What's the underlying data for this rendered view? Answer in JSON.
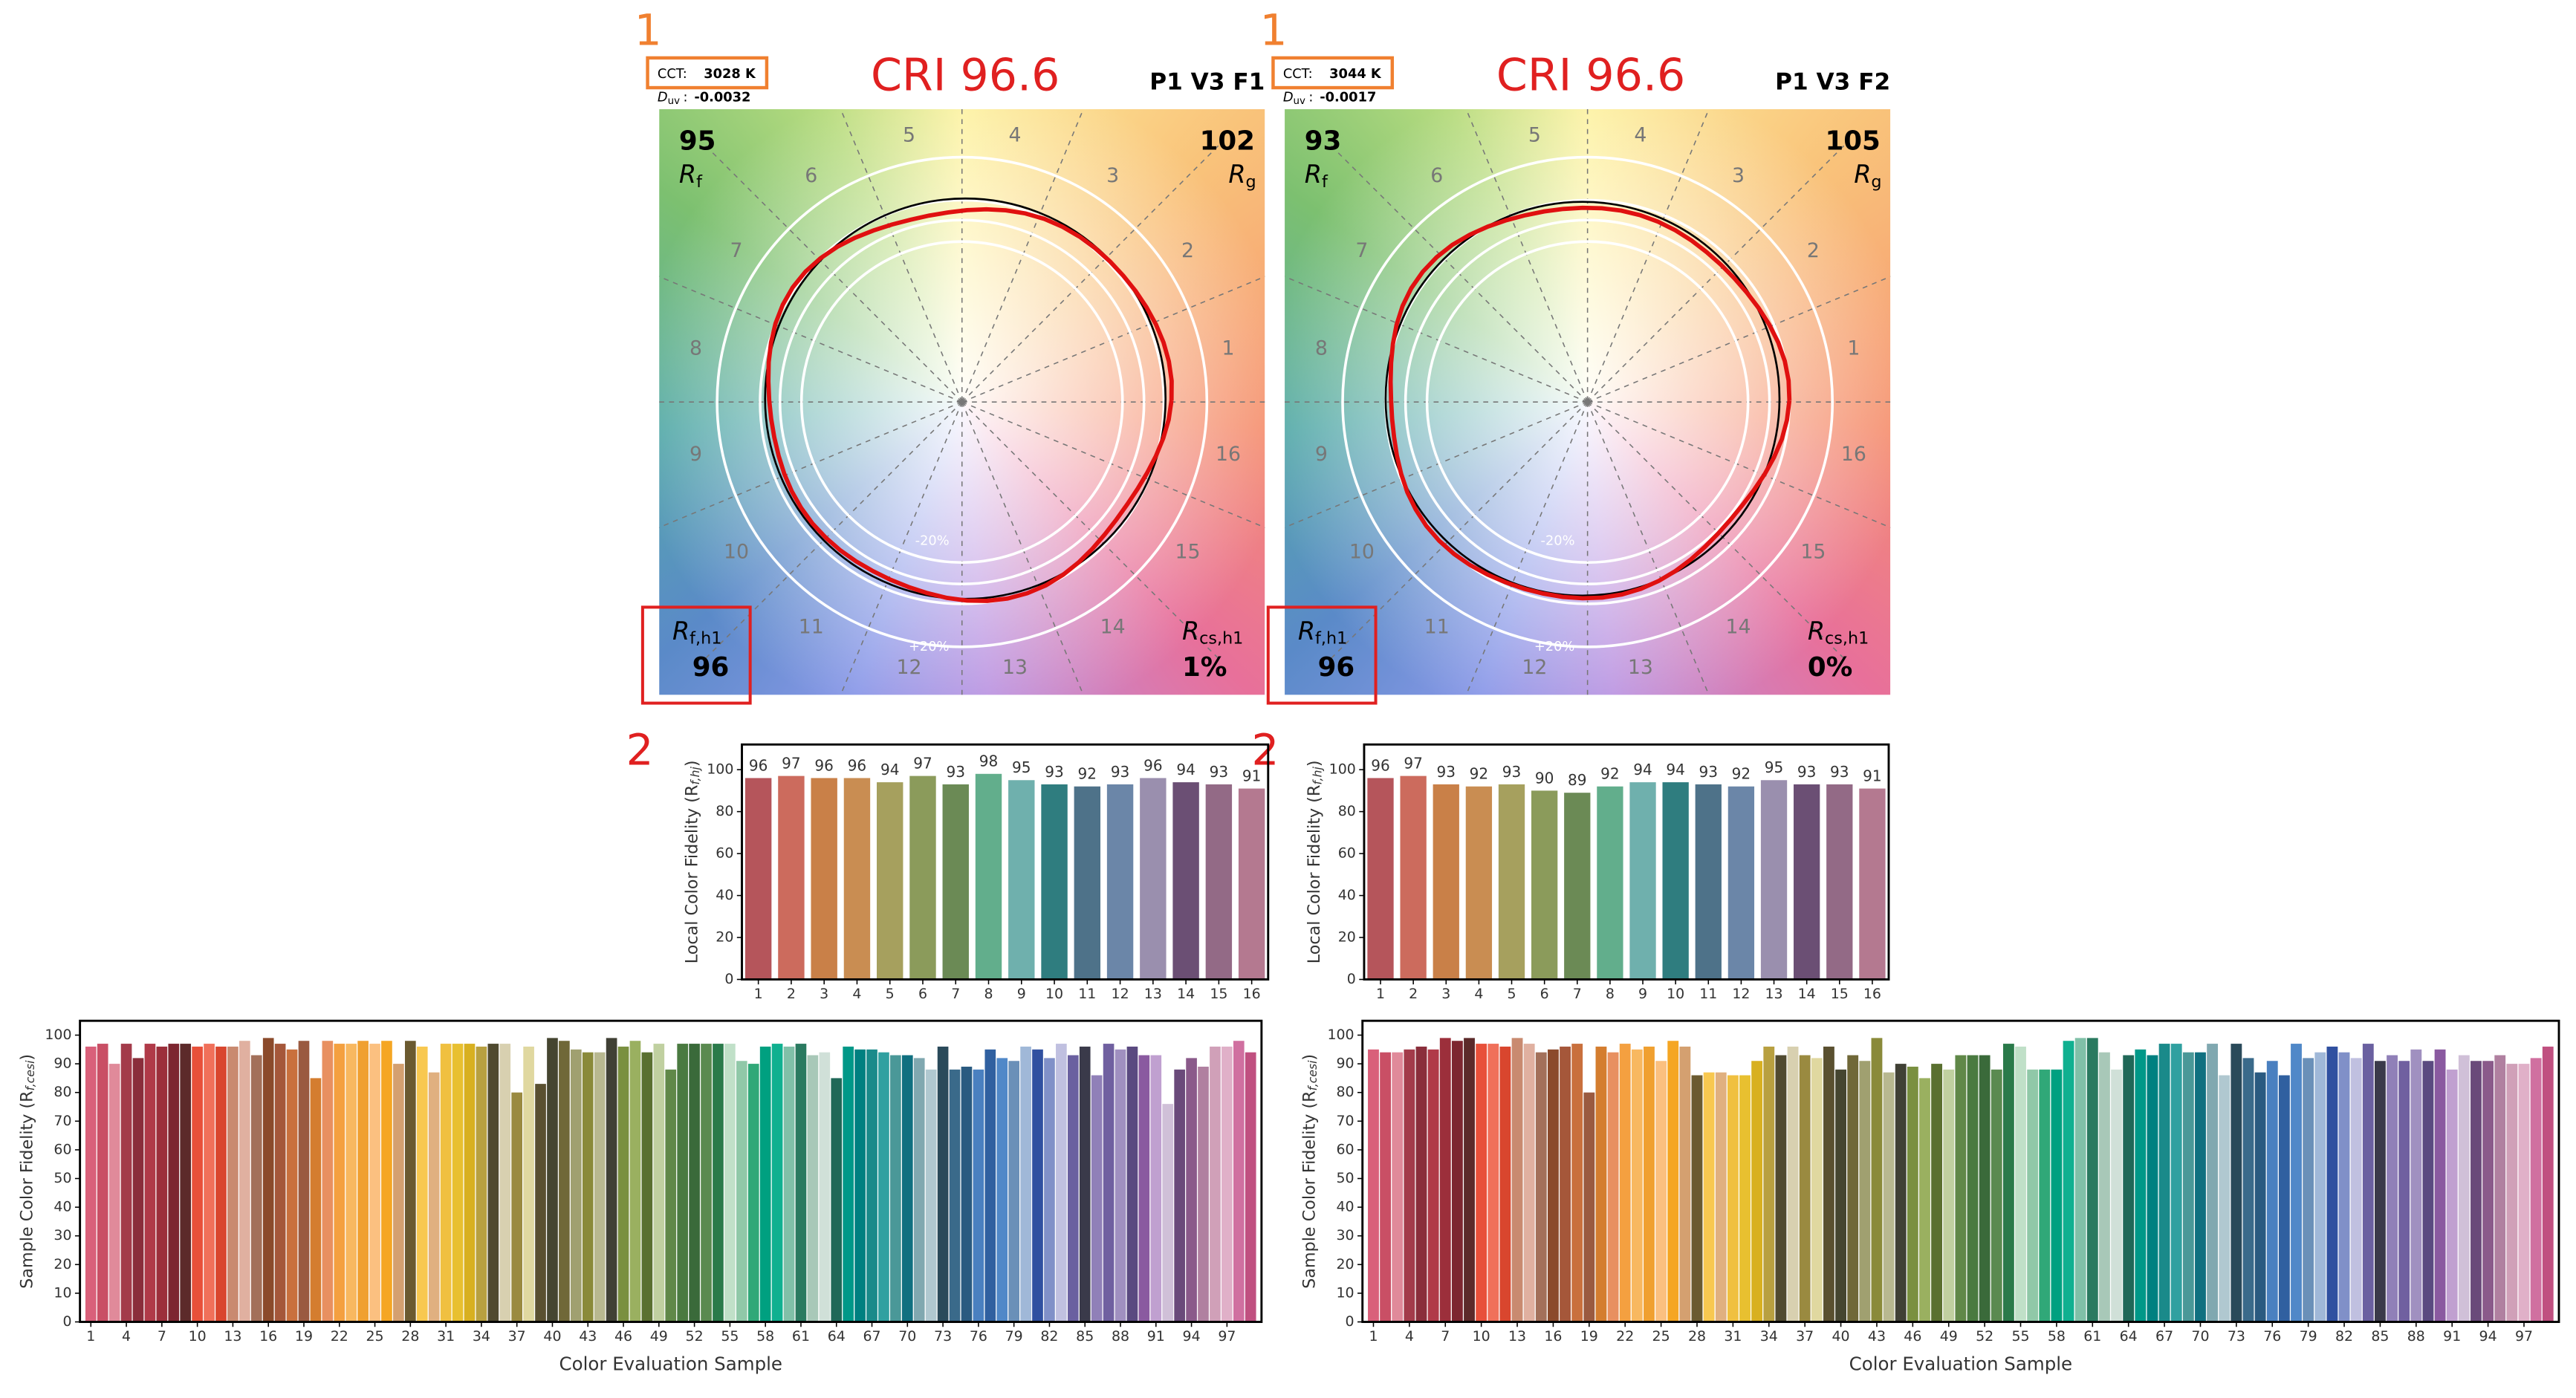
{
  "panels": [
    {
      "annotation_1": "1",
      "cct_label": "CCT:",
      "cct": "3028 K",
      "duv_label": "D",
      "duv_sub": "uv",
      "duv_sep": ":",
      "duv": "-0.0032",
      "title": "CRI 96.6",
      "name": "P1 V3 F1",
      "r_symbol": "R",
      "rf": 95,
      "rf_sub": "f",
      "rg": 102,
      "rg_sub": "g",
      "rfh1_sub": "f,h1",
      "rfh1": 96,
      "rcs_sub": "cs,h1",
      "rcs": "1%",
      "ring_inner": "-20%",
      "ring_outer": "+20%",
      "annotation_2": "2",
      "hues": [
        "1",
        "2",
        "3",
        "4",
        "5",
        "6",
        "7",
        "8",
        "9",
        "10",
        "11",
        "12",
        "13",
        "14",
        "15",
        "16"
      ]
    },
    {
      "annotation_1": "1",
      "cct_label": "CCT:",
      "cct": "3044 K",
      "duv_label": "D",
      "duv_sub": "uv",
      "duv_sep": ":",
      "duv": "-0.0017",
      "title": "CRI 96.6",
      "name": "P1 V3 F2",
      "r_symbol": "R",
      "rf": 93,
      "rf_sub": "f",
      "rg": 105,
      "rg_sub": "g",
      "rfh1_sub": "f,h1",
      "rfh1": 96,
      "rcs_sub": "cs,h1",
      "rcs": "0%",
      "ring_inner": "-20%",
      "ring_outer": "+20%",
      "annotation_2": "2",
      "hues": [
        "1",
        "2",
        "3",
        "4",
        "5",
        "6",
        "7",
        "8",
        "9",
        "10",
        "11",
        "12",
        "13",
        "14",
        "15",
        "16"
      ]
    }
  ],
  "chart_data": [
    {
      "type": "bar",
      "y_label": "Local Color Fidelity (R",
      "y_label_sub": "f,hj",
      "y_label_end": ")",
      "categories": [
        "1",
        "2",
        "3",
        "4",
        "5",
        "6",
        "7",
        "8",
        "9",
        "10",
        "11",
        "12",
        "13",
        "14",
        "15",
        "16"
      ],
      "values": [
        96,
        97,
        96,
        96,
        94,
        97,
        93,
        98,
        95,
        93,
        92,
        93,
        96,
        94,
        93,
        91
      ],
      "colors": [
        "#b5555b",
        "#cc6b5d",
        "#c98048",
        "#c98d52",
        "#a6a05e",
        "#8b9b5b",
        "#6b8a55",
        "#62ae8c",
        "#6fb0ad",
        "#2f7d7f",
        "#4e7289",
        "#6b86a8",
        "#9a8fae",
        "#6b4f74",
        "#936a86",
        "#b47990"
      ],
      "ylim": [
        0,
        112
      ],
      "yticks": [
        0,
        20,
        40,
        60,
        80,
        100
      ]
    },
    {
      "type": "bar",
      "y_label": "Local Color Fidelity (R",
      "y_label_sub": "f,hj",
      "y_label_end": ")",
      "categories": [
        "1",
        "2",
        "3",
        "4",
        "5",
        "6",
        "7",
        "8",
        "9",
        "10",
        "11",
        "12",
        "13",
        "14",
        "15",
        "16"
      ],
      "values": [
        96,
        97,
        93,
        92,
        93,
        90,
        89,
        92,
        94,
        94,
        93,
        92,
        95,
        93,
        93,
        91
      ],
      "colors": [
        "#b5555b",
        "#cc6b5d",
        "#c98048",
        "#c98d52",
        "#a6a05e",
        "#8b9b5b",
        "#6b8a55",
        "#62ae8c",
        "#6fb0ad",
        "#2f7d7f",
        "#4e7289",
        "#6b86a8",
        "#9a8fae",
        "#6b4f74",
        "#936a86",
        "#b47990"
      ],
      "ylim": [
        0,
        112
      ],
      "yticks": [
        0,
        20,
        40,
        60,
        80,
        100
      ]
    },
    {
      "type": "sample_bar",
      "y_label": "Sample Color Fidelity (R",
      "y_label_sub": "f,cesi",
      "y_label_end": ")",
      "x_label": "Color Evaluation Sample",
      "categories": [
        "1",
        null,
        null,
        "4",
        null,
        null,
        "7",
        null,
        null,
        "10",
        null,
        null,
        "13",
        null,
        null,
        "16",
        null,
        null,
        "19",
        null,
        null,
        "22",
        null,
        null,
        "25",
        null,
        null,
        "28",
        null,
        null,
        "31",
        null,
        null,
        "34",
        null,
        null,
        "37",
        null,
        null,
        "40",
        null,
        null,
        "43",
        null,
        null,
        "46",
        null,
        null,
        "49",
        null,
        null,
        "52",
        null,
        null,
        "55",
        null,
        null,
        "58",
        null,
        null,
        "61",
        null,
        null,
        "64",
        null,
        null,
        "67",
        null,
        null,
        "70",
        null,
        null,
        "73",
        null,
        null,
        "76",
        null,
        null,
        "79",
        null,
        null,
        "82",
        null,
        null,
        "85",
        null,
        null,
        "88",
        null,
        null,
        "91",
        null,
        null,
        "94",
        null,
        null,
        "97",
        null,
        null
      ],
      "values": [
        96,
        97,
        90,
        97,
        92,
        97,
        96,
        97,
        97,
        96,
        97,
        96,
        96,
        98,
        93,
        99,
        97,
        95,
        98,
        85,
        98,
        97,
        97,
        98,
        97,
        98,
        90,
        98,
        96,
        87,
        97,
        97,
        97,
        96,
        97,
        97,
        80,
        96,
        83,
        99,
        98,
        95,
        94,
        94,
        99,
        96,
        98,
        94,
        97,
        88,
        97,
        97,
        97,
        97,
        97,
        91,
        90,
        96,
        97,
        96,
        97,
        93,
        94,
        85,
        96,
        95,
        95,
        94,
        93,
        93,
        92,
        88,
        96,
        88,
        89,
        88,
        95,
        92,
        91,
        96,
        95,
        92,
        97,
        93,
        96,
        86,
        97,
        95,
        96,
        93,
        93,
        76,
        88,
        92,
        89,
        96,
        96,
        98,
        94
      ],
      "colors": [
        "#d9607a",
        "#c94f65",
        "#e08a9a",
        "#a33b4a",
        "#8a2e3b",
        "#b03a48",
        "#9c2f3b",
        "#7d2630",
        "#5c2a2a",
        "#e8503a",
        "#f0705a",
        "#d9462e",
        "#c98a70",
        "#e0b0a0",
        "#a3705a",
        "#8b4a2b",
        "#a5573a",
        "#c9703d",
        "#9a5a40",
        "#d47d2f",
        "#e89060",
        "#f4a040",
        "#f8b860",
        "#f0a030",
        "#fbc080",
        "#f5a623",
        "#d4a070",
        "#6b5a30",
        "#f8c850",
        "#e0b080",
        "#f0c040",
        "#e8c030",
        "#d8b020",
        "#b8a040",
        "#504a30",
        "#d8d0b0",
        "#9a8a40",
        "#e0d8a0",
        "#5a5030",
        "#454530",
        "#706838",
        "#a0a070",
        "#8a8a3a",
        "#b8b890",
        "#404035",
        "#7a9040",
        "#9ab060",
        "#5a7030",
        "#c0d0a0",
        "#608848",
        "#4a7a40",
        "#3a6a3a",
        "#5a8a50",
        "#2a7a4a",
        "#c0e0c8",
        "#90c8a8",
        "#30a878",
        "#00a080",
        "#10b090",
        "#80c0a8",
        "#2a7a60",
        "#a8c8b8",
        "#d0e0d8",
        "#206858",
        "#009888",
        "#008080",
        "#1a8a8a",
        "#30a0a0",
        "#4a9898",
        "#107080",
        "#80a8b0",
        "#b0c8d0",
        "#2a4a5a",
        "#3a6a8a",
        "#2a5a80",
        "#4a80c0",
        "#3060a0",
        "#5088c8",
        "#6a90b8",
        "#a0b8d8",
        "#3050a0",
        "#8090c8",
        "#c0c0e0",
        "#6a60a0",
        "#3a3a4a",
        "#9080b8",
        "#7060a0",
        "#a090c0",
        "#5a4a80",
        "#8a5aa0",
        "#c0a0d0",
        "#d0c0d8",
        "#6a4a7a",
        "#8a5a8a",
        "#b080a0",
        "#d0a0b8",
        "#e0b0c8",
        "#d070a0",
        "#c05080"
      ],
      "ylim": [
        0,
        105
      ],
      "yticks": [
        0,
        10,
        20,
        30,
        40,
        50,
        60,
        70,
        80,
        90,
        100
      ]
    },
    {
      "type": "sample_bar",
      "y_label": "Sample Color Fidelity (R",
      "y_label_sub": "f,cesi",
      "y_label_end": ")",
      "x_label": "Color Evaluation Sample",
      "categories": [
        "1",
        null,
        null,
        "4",
        null,
        null,
        "7",
        null,
        null,
        "10",
        null,
        null,
        "13",
        null,
        null,
        "16",
        null,
        null,
        "19",
        null,
        null,
        "22",
        null,
        null,
        "25",
        null,
        null,
        "28",
        null,
        null,
        "31",
        null,
        null,
        "34",
        null,
        null,
        "37",
        null,
        null,
        "40",
        null,
        null,
        "43",
        null,
        null,
        "46",
        null,
        null,
        "49",
        null,
        null,
        "52",
        null,
        null,
        "55",
        null,
        null,
        "58",
        null,
        null,
        "61",
        null,
        null,
        "64",
        null,
        null,
        "67",
        null,
        null,
        "70",
        null,
        null,
        "73",
        null,
        null,
        "76",
        null,
        null,
        "79",
        null,
        null,
        "82",
        null,
        null,
        "85",
        null,
        null,
        "88",
        null,
        null,
        "91",
        null,
        null,
        "94",
        null,
        null,
        "97",
        null,
        null
      ],
      "values": [
        95,
        94,
        94,
        95,
        96,
        95,
        99,
        98,
        99,
        97,
        97,
        96,
        99,
        97,
        94,
        95,
        96,
        97,
        80,
        96,
        94,
        97,
        95,
        96,
        91,
        98,
        96,
        86,
        87,
        87,
        86,
        86,
        91,
        96,
        93,
        96,
        93,
        92,
        96,
        88,
        93,
        91,
        99,
        87,
        90,
        89,
        85,
        90,
        88,
        93,
        93,
        93,
        88,
        97,
        96,
        88,
        88,
        88,
        98,
        99,
        99,
        94,
        88,
        93,
        95,
        93,
        97,
        97,
        94,
        94,
        97,
        86,
        97,
        92,
        87,
        91,
        86,
        97,
        92,
        94,
        96,
        94,
        92,
        97,
        91,
        93,
        91,
        95,
        91,
        95,
        88,
        93,
        91,
        91,
        93,
        90,
        90,
        92,
        96
      ],
      "colors": [
        "#d9607a",
        "#c94f65",
        "#e08a9a",
        "#a33b4a",
        "#8a2e3b",
        "#b03a48",
        "#9c2f3b",
        "#7d2630",
        "#5c2a2a",
        "#e8503a",
        "#f0705a",
        "#d9462e",
        "#c98a70",
        "#e0b0a0",
        "#a3705a",
        "#8b4a2b",
        "#a5573a",
        "#c9703d",
        "#9a5a40",
        "#d47d2f",
        "#e89060",
        "#f4a040",
        "#f8b860",
        "#f0a030",
        "#fbc080",
        "#f5a623",
        "#d4a070",
        "#6b5a30",
        "#f8c850",
        "#e0b080",
        "#f0c040",
        "#e8c030",
        "#d8b020",
        "#b8a040",
        "#504a30",
        "#d8d0b0",
        "#9a8a40",
        "#e0d8a0",
        "#5a5030",
        "#454530",
        "#706838",
        "#a0a070",
        "#8a8a3a",
        "#b8b890",
        "#404035",
        "#7a9040",
        "#9ab060",
        "#5a7030",
        "#c0d0a0",
        "#608848",
        "#4a7a40",
        "#3a6a3a",
        "#5a8a50",
        "#2a7a4a",
        "#c0e0c8",
        "#90c8a8",
        "#30a878",
        "#00a080",
        "#10b090",
        "#80c0a8",
        "#2a7a60",
        "#a8c8b8",
        "#d0e0d8",
        "#206858",
        "#009888",
        "#008080",
        "#1a8a8a",
        "#30a0a0",
        "#4a9898",
        "#107080",
        "#80a8b0",
        "#b0c8d0",
        "#2a4a5a",
        "#3a6a8a",
        "#2a5a80",
        "#4a80c0",
        "#3060a0",
        "#5088c8",
        "#6a90b8",
        "#a0b8d8",
        "#3050a0",
        "#8090c8",
        "#c0c0e0",
        "#6a60a0",
        "#3a3a4a",
        "#9080b8",
        "#7060a0",
        "#a090c0",
        "#5a4a80",
        "#8a5aa0",
        "#c0a0d0",
        "#d0c0d8",
        "#6a4a7a",
        "#8a5a8a",
        "#b080a0",
        "#d0a0b8",
        "#e0b0c8",
        "#d070a0",
        "#c05080"
      ],
      "ylim": [
        0,
        105
      ],
      "yticks": [
        0,
        10,
        20,
        30,
        40,
        50,
        60,
        70,
        80,
        90,
        100
      ]
    }
  ]
}
